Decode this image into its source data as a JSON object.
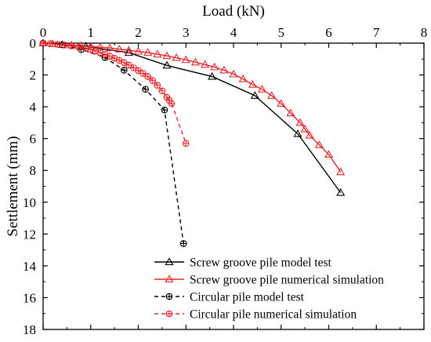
{
  "chart_data": {
    "type": "line",
    "xlabel": "Load (kN)",
    "ylabel": "Settlement (mm)",
    "xlim": [
      0,
      8
    ],
    "ylim": [
      0,
      18
    ],
    "y_inverted": true,
    "x_axis_position": "top",
    "x_ticks": [
      "0",
      "1",
      "2",
      "3",
      "4",
      "5",
      "6",
      "7",
      "8"
    ],
    "y_ticks": [
      "0",
      "2",
      "4",
      "6",
      "8",
      "10",
      "12",
      "14",
      "16",
      "18"
    ],
    "grid": false,
    "legend_position": "bottom-right",
    "series": [
      {
        "name": "Screw groove pile model test",
        "color": "#000000",
        "line_style": "solid",
        "marker": "triangle",
        "points": [
          [
            0,
            0
          ],
          [
            0.9,
            0.2
          ],
          [
            1.8,
            0.6
          ],
          [
            2.6,
            1.4
          ],
          [
            3.55,
            2.1
          ],
          [
            4.45,
            3.3
          ],
          [
            5.35,
            5.7
          ],
          [
            6.25,
            9.4
          ]
        ]
      },
      {
        "name": "Screw groove pile numerical simulation",
        "color": "#e8262b",
        "line_style": "solid",
        "marker": "triangle",
        "points": [
          [
            0,
            0
          ],
          [
            0.2,
            0.05
          ],
          [
            0.4,
            0.1
          ],
          [
            0.6,
            0.13
          ],
          [
            0.8,
            0.16
          ],
          [
            1.0,
            0.2
          ],
          [
            1.2,
            0.25
          ],
          [
            1.4,
            0.3
          ],
          [
            1.6,
            0.38
          ],
          [
            1.8,
            0.45
          ],
          [
            2.0,
            0.52
          ],
          [
            2.2,
            0.6
          ],
          [
            2.4,
            0.7
          ],
          [
            2.6,
            0.8
          ],
          [
            2.8,
            0.92
          ],
          [
            3.0,
            1.05
          ],
          [
            3.2,
            1.2
          ],
          [
            3.4,
            1.35
          ],
          [
            3.6,
            1.5
          ],
          [
            3.8,
            1.7
          ],
          [
            4.0,
            1.95
          ],
          [
            4.2,
            2.25
          ],
          [
            4.4,
            2.6
          ],
          [
            4.6,
            2.9
          ],
          [
            4.8,
            3.3
          ],
          [
            5.0,
            3.8
          ],
          [
            5.2,
            4.4
          ],
          [
            5.4,
            5.0
          ],
          [
            5.5,
            5.4
          ],
          [
            5.6,
            5.8
          ],
          [
            5.8,
            6.4
          ],
          [
            6.0,
            7.0
          ],
          [
            6.25,
            8.1
          ]
        ]
      },
      {
        "name": "Circular pile model test",
        "color": "#000000",
        "line_style": "dashed",
        "marker": "circle-plus",
        "points": [
          [
            0,
            0
          ],
          [
            0.4,
            0.1
          ],
          [
            0.8,
            0.4
          ],
          [
            1.3,
            0.9
          ],
          [
            1.7,
            1.7
          ],
          [
            2.15,
            2.9
          ],
          [
            2.55,
            4.2
          ],
          [
            2.95,
            12.6
          ]
        ]
      },
      {
        "name": "Circular pile numerical simulation",
        "color": "#e8262b",
        "line_style": "dashed",
        "marker": "circle-plus",
        "points": [
          [
            0,
            0
          ],
          [
            0.15,
            0.03
          ],
          [
            0.3,
            0.07
          ],
          [
            0.45,
            0.12
          ],
          [
            0.6,
            0.18
          ],
          [
            0.75,
            0.25
          ],
          [
            0.9,
            0.33
          ],
          [
            1.0,
            0.4
          ],
          [
            1.1,
            0.5
          ],
          [
            1.2,
            0.6
          ],
          [
            1.3,
            0.7
          ],
          [
            1.4,
            0.82
          ],
          [
            1.5,
            0.95
          ],
          [
            1.6,
            1.08
          ],
          [
            1.7,
            1.22
          ],
          [
            1.8,
            1.38
          ],
          [
            1.9,
            1.55
          ],
          [
            2.0,
            1.72
          ],
          [
            2.1,
            1.9
          ],
          [
            2.2,
            2.1
          ],
          [
            2.3,
            2.35
          ],
          [
            2.4,
            2.65
          ],
          [
            2.5,
            3.0
          ],
          [
            2.6,
            3.4
          ],
          [
            2.65,
            3.6
          ],
          [
            2.7,
            3.8
          ],
          [
            3.0,
            6.3
          ]
        ]
      }
    ]
  }
}
